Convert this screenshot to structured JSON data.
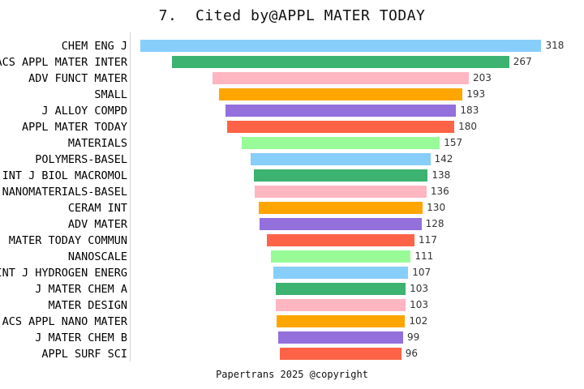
{
  "title": "7.  Cited by@APPL MATER TODAY",
  "footer": "Papertrans 2025 @copyright",
  "chart_data": {
    "type": "bar",
    "variant": "horizontal-centered-funnel",
    "title": "7.  Cited by@APPL MATER TODAY",
    "footer": "Papertrans 2025 @copyright",
    "categories": [
      "CHEM ENG J",
      "ACS APPL MATER INTER",
      "ADV FUNCT MATER",
      "SMALL",
      "J ALLOY COMPD",
      "APPL MATER TODAY",
      "MATERIALS",
      "POLYMERS-BASEL",
      "INT J BIOL MACROMOL",
      "NANOMATERIALS-BASEL",
      "CERAM INT",
      "ADV MATER",
      "MATER TODAY COMMUN",
      "NANOSCALE",
      "INT J HYDROGEN ENERG",
      "J MATER CHEM A",
      "MATER DESIGN",
      "ACS APPL NANO MATER",
      "J MATER CHEM B",
      "APPL SURF SCI"
    ],
    "values": [
      318,
      267,
      203,
      193,
      183,
      180,
      157,
      142,
      138,
      136,
      130,
      128,
      117,
      111,
      107,
      103,
      103,
      102,
      99,
      96
    ],
    "value_labels_shown": true,
    "palette": [
      "#87CEFA",
      "#3CB371",
      "#FFB6C1",
      "#FFA500",
      "#9370DB",
      "#FF6347",
      "#98FB98"
    ],
    "axis_line_color": "#d4d4d4",
    "label_color": "#000000",
    "value_label_color": "#333333",
    "background_color": "#ffffff",
    "legend": "none",
    "grid": "off"
  }
}
